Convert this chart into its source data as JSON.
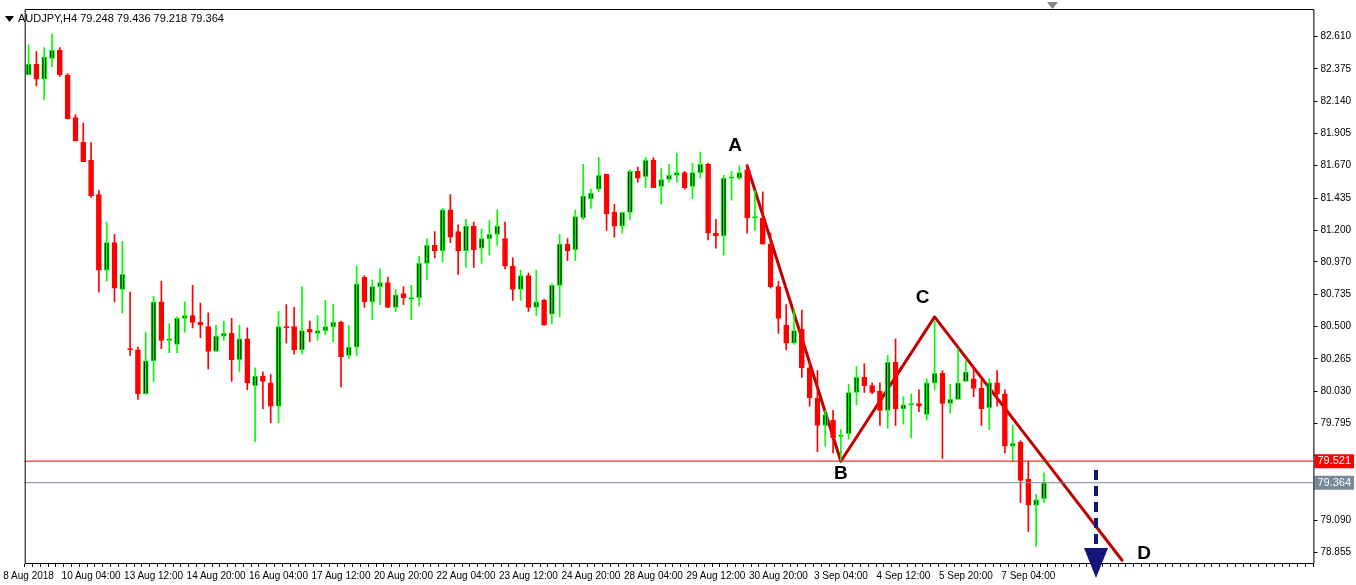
{
  "chart_data": {
    "type": "candlestick",
    "title": "AUDJPY,H4  79.248 79.436 79.218 79.364",
    "categories": [
      "8 Aug 2018",
      null,
      null,
      null,
      null,
      null,
      null,
      null,
      "10 Aug 04:00",
      null,
      null,
      null,
      null,
      null,
      null,
      null,
      "13 Aug 12:00",
      null,
      null,
      null,
      null,
      null,
      null,
      null,
      "14 Aug 20:00",
      null,
      null,
      null,
      null,
      null,
      null,
      null,
      "16 Aug 04:00",
      null,
      null,
      null,
      null,
      null,
      null,
      null,
      "17 Aug 12:00",
      null,
      null,
      null,
      null,
      null,
      null,
      null,
      "20 Aug 20:00",
      null,
      null,
      null,
      null,
      null,
      null,
      null,
      "22 Aug 04:00",
      null,
      null,
      null,
      null,
      null,
      null,
      null,
      "23 Aug 12:00",
      null,
      null,
      null,
      null,
      null,
      null,
      null,
      "24 Aug 20:00",
      null,
      null,
      null,
      null,
      null,
      null,
      null,
      "28 Aug 04:00",
      null,
      null,
      null,
      null,
      null,
      null,
      null,
      "29 Aug 12:00",
      null,
      null,
      null,
      null,
      null,
      null,
      null,
      "30 Aug 20:00",
      null,
      null,
      null,
      null,
      null,
      null,
      null,
      "3 Sep 04:00",
      null,
      null,
      null,
      null,
      null,
      null,
      null,
      "4 Sep 12:00",
      null,
      null,
      null,
      null,
      null,
      null,
      null,
      "5 Sep 20:00",
      null,
      null,
      null,
      null,
      null,
      null,
      null,
      "7 Sep 04:00",
      null,
      null,
      null,
      null,
      null,
      null,
      null,
      null,
      null,
      null,
      null,
      null,
      null,
      null,
      null,
      null,
      null,
      null,
      null,
      null,
      null,
      null,
      null,
      null,
      null,
      null,
      null,
      null,
      null,
      null,
      null,
      null,
      null,
      null,
      null,
      null
    ],
    "ohlc": [
      [
        82.33,
        82.55,
        82.33,
        82.41
      ],
      [
        82.41,
        82.5,
        82.25,
        82.3
      ],
      [
        82.3,
        82.53,
        82.15,
        82.46
      ],
      [
        82.45,
        82.63,
        82.39,
        82.51
      ],
      [
        82.51,
        82.53,
        82.32,
        82.33
      ],
      [
        82.33,
        82.34,
        82.01,
        82.01
      ],
      [
        82.02,
        82.04,
        81.85,
        81.85
      ],
      [
        81.84,
        81.98,
        81.7,
        81.7
      ],
      [
        81.71,
        81.84,
        81.44,
        81.45
      ],
      [
        81.46,
        81.49,
        80.75,
        80.91
      ],
      [
        80.91,
        81.26,
        80.83,
        81.11
      ],
      [
        81.11,
        81.17,
        80.68,
        80.78
      ],
      [
        80.77,
        81.12,
        80.6,
        80.88
      ],
      [
        80.34,
        80.75,
        80.29,
        80.33
      ],
      [
        80.33,
        80.35,
        79.97,
        80.01
      ],
      [
        80.01,
        80.46,
        80.01,
        80.25
      ],
      [
        80.25,
        80.72,
        80.1,
        80.68
      ],
      [
        80.68,
        80.83,
        80.34,
        80.4
      ],
      [
        80.4,
        80.52,
        80.31,
        80.41
      ],
      [
        80.37,
        80.57,
        80.31,
        80.56
      ],
      [
        80.56,
        80.68,
        80.46,
        80.58
      ],
      [
        80.58,
        80.8,
        80.49,
        80.53
      ],
      [
        80.53,
        80.67,
        80.42,
        80.51
      ],
      [
        80.5,
        80.6,
        80.19,
        80.32
      ],
      [
        80.32,
        80.51,
        80.32,
        80.43
      ],
      [
        80.43,
        80.54,
        80.4,
        80.45
      ],
      [
        80.45,
        80.56,
        80.1,
        80.26
      ],
      [
        80.26,
        80.51,
        80.17,
        80.41
      ],
      [
        80.41,
        80.49,
        80.04,
        80.09
      ],
      [
        80.07,
        80.2,
        79.66,
        80.14
      ],
      [
        80.14,
        80.17,
        79.9,
        80.1
      ],
      [
        80.09,
        80.15,
        79.8,
        79.92
      ],
      [
        79.92,
        80.61,
        79.8,
        80.5
      ],
      [
        80.5,
        80.66,
        80.38,
        80.49
      ],
      [
        80.5,
        80.64,
        80.3,
        80.33
      ],
      [
        80.33,
        80.79,
        80.3,
        80.47
      ],
      [
        80.48,
        80.54,
        80.39,
        80.46
      ],
      [
        80.45,
        80.58,
        80.4,
        80.47
      ],
      [
        80.47,
        80.69,
        80.44,
        80.5
      ],
      [
        80.5,
        80.66,
        80.39,
        80.53
      ],
      [
        80.53,
        80.54,
        80.06,
        80.28
      ],
      [
        80.29,
        80.51,
        80.27,
        80.35
      ],
      [
        80.35,
        80.94,
        80.29,
        80.81
      ],
      [
        80.86,
        80.87,
        80.64,
        80.68
      ],
      [
        80.68,
        80.84,
        80.55,
        80.79
      ],
      [
        80.79,
        80.92,
        80.66,
        80.82
      ],
      [
        80.82,
        80.86,
        80.64,
        80.64
      ],
      [
        80.64,
        80.77,
        80.61,
        80.73
      ],
      [
        80.74,
        80.79,
        80.66,
        80.71
      ],
      [
        80.7,
        80.8,
        80.55,
        80.71
      ],
      [
        80.71,
        81.01,
        80.65,
        80.96
      ],
      [
        80.96,
        81.14,
        80.84,
        81.09
      ],
      [
        81.09,
        81.19,
        81.0,
        81.05
      ],
      [
        81.05,
        81.36,
        80.97,
        81.35
      ],
      [
        81.35,
        81.46,
        81.11,
        81.15
      ],
      [
        81.19,
        81.24,
        80.88,
        81.05
      ],
      [
        81.05,
        81.28,
        80.93,
        81.23
      ],
      [
        81.23,
        81.26,
        80.93,
        81.06
      ],
      [
        81.07,
        81.21,
        80.96,
        81.14
      ],
      [
        81.14,
        81.27,
        81.02,
        81.17
      ],
      [
        81.17,
        81.35,
        81.09,
        81.23
      ],
      [
        81.14,
        81.26,
        80.92,
        80.94
      ],
      [
        80.94,
        81.0,
        80.69,
        80.77
      ],
      [
        80.77,
        80.91,
        80.69,
        80.87
      ],
      [
        80.87,
        80.89,
        80.61,
        80.64
      ],
      [
        80.64,
        80.91,
        80.58,
        80.68
      ],
      [
        80.69,
        80.7,
        80.51,
        80.51
      ],
      [
        80.59,
        80.81,
        80.52,
        80.8
      ],
      [
        80.8,
        81.17,
        80.57,
        81.1
      ],
      [
        81.1,
        81.14,
        80.98,
        81.05
      ],
      [
        81.06,
        81.35,
        80.98,
        81.3
      ],
      [
        81.29,
        81.68,
        81.28,
        81.45
      ],
      [
        81.43,
        81.5,
        81.36,
        81.47
      ],
      [
        81.5,
        81.73,
        81.48,
        81.6
      ],
      [
        81.61,
        81.61,
        81.2,
        81.32
      ],
      [
        81.33,
        81.39,
        81.15,
        81.23
      ],
      [
        81.23,
        81.33,
        81.18,
        81.33
      ],
      [
        81.33,
        81.64,
        81.28,
        81.63
      ],
      [
        81.63,
        81.66,
        81.55,
        81.58
      ],
      [
        81.59,
        81.73,
        81.51,
        81.71
      ],
      [
        81.71,
        81.73,
        81.51,
        81.51
      ],
      [
        81.52,
        81.65,
        81.39,
        81.57
      ],
      [
        81.57,
        81.68,
        81.55,
        81.6
      ],
      [
        81.6,
        81.76,
        81.55,
        81.62
      ],
      [
        81.62,
        81.63,
        81.5,
        81.51
      ],
      [
        81.52,
        81.69,
        81.43,
        81.62
      ],
      [
        81.62,
        81.77,
        81.58,
        81.68
      ],
      [
        81.68,
        81.69,
        81.13,
        81.18
      ],
      [
        81.18,
        81.28,
        81.07,
        81.16
      ],
      [
        81.16,
        81.6,
        81.02,
        81.58
      ],
      [
        81.58,
        81.63,
        81.42,
        81.59
      ],
      [
        81.58,
        81.67,
        81.57,
        81.62
      ],
      [
        81.64,
        81.67,
        81.18,
        81.29
      ],
      [
        81.29,
        81.49,
        81.2,
        81.3
      ],
      [
        81.29,
        81.48,
        81.1,
        81.1
      ],
      [
        81.1,
        81.18,
        80.78,
        80.79
      ],
      [
        80.79,
        80.83,
        80.45,
        80.56
      ],
      [
        80.51,
        80.66,
        80.33,
        80.38
      ],
      [
        80.38,
        80.63,
        80.37,
        80.47
      ],
      [
        80.48,
        80.62,
        80.13,
        80.2
      ],
      [
        80.2,
        80.24,
        79.92,
        79.98
      ],
      [
        79.98,
        80.18,
        79.59,
        79.78
      ],
      [
        79.78,
        79.89,
        79.63,
        79.86
      ],
      [
        79.82,
        79.89,
        79.58,
        79.69
      ],
      [
        79.7,
        79.75,
        79.52,
        79.71
      ],
      [
        79.72,
        80.08,
        79.68,
        80.02
      ],
      [
        80.02,
        80.21,
        79.93,
        80.13
      ],
      [
        80.13,
        80.23,
        80.02,
        80.07
      ],
      [
        80.07,
        80.09,
        80.01,
        80.02
      ],
      [
        80.03,
        80.09,
        79.78,
        79.89
      ],
      [
        79.89,
        80.29,
        79.76,
        80.24
      ],
      [
        80.24,
        80.41,
        79.78,
        79.9
      ],
      [
        79.9,
        79.99,
        79.79,
        79.93
      ],
      [
        79.93,
        80.01,
        79.69,
        79.94
      ],
      [
        79.94,
        80.04,
        79.88,
        79.92
      ],
      [
        79.86,
        80.12,
        79.82,
        80.09
      ],
      [
        80.09,
        80.54,
        80.04,
        80.16
      ],
      [
        80.16,
        80.18,
        79.54,
        79.94
      ],
      [
        79.94,
        80.08,
        79.87,
        79.97
      ],
      [
        79.97,
        80.34,
        79.97,
        80.09
      ],
      [
        80.1,
        80.25,
        80.1,
        80.17
      ],
      [
        80.12,
        80.21,
        79.99,
        80.05
      ],
      [
        80.05,
        80.11,
        79.78,
        79.9
      ],
      [
        79.91,
        80.12,
        79.75,
        80.09
      ],
      [
        80.09,
        80.18,
        79.92,
        80.01
      ],
      [
        80.01,
        80.04,
        79.58,
        79.63
      ],
      [
        79.63,
        79.78,
        79.52,
        79.65
      ],
      [
        79.66,
        79.67,
        79.22,
        79.38
      ],
      [
        79.39,
        79.52,
        79.01,
        79.2
      ],
      [
        79.2,
        79.28,
        78.9,
        79.24
      ],
      [
        79.248,
        79.436,
        79.218,
        79.364
      ],
      null,
      null,
      null,
      null,
      null,
      null,
      null,
      null,
      null,
      null,
      null,
      null,
      null,
      null,
      null,
      null,
      null,
      null,
      null,
      null,
      null,
      null,
      null,
      null,
      null,
      null,
      null,
      null,
      null,
      null,
      null,
      null,
      null,
      null
    ],
    "series": [
      {
        "type": "line",
        "color": "#c00000",
        "values": [
          null,
          null,
          null,
          null,
          null,
          null,
          null,
          null,
          null,
          null,
          null,
          null,
          null,
          null,
          null,
          null,
          null,
          null,
          null,
          null,
          null,
          null,
          null,
          null,
          null,
          null,
          null,
          null,
          null,
          null,
          null,
          null,
          null,
          null,
          null,
          null,
          null,
          null,
          null,
          null,
          null,
          null,
          null,
          null,
          null,
          null,
          null,
          null,
          null,
          null,
          null,
          null,
          null,
          null,
          null,
          null,
          null,
          null,
          null,
          null,
          null,
          null,
          null,
          null,
          null,
          null,
          null,
          null,
          null,
          null,
          null,
          null,
          null,
          null,
          null,
          null,
          null,
          null,
          null,
          null,
          null,
          null,
          null,
          null,
          null,
          null,
          null,
          null,
          null,
          null,
          null,
          null,
          81.67,
          null,
          null,
          null,
          null,
          null,
          null,
          null,
          null,
          null,
          null,
          null,
          79.52,
          null,
          null,
          null,
          null,
          null,
          null,
          null,
          null,
          null,
          null,
          null,
          80.57,
          null,
          null,
          null,
          null,
          null,
          null,
          null,
          null,
          null,
          null,
          null,
          null,
          null,
          null,
          null,
          null,
          null,
          null,
          null,
          null,
          null,
          null,
          null,
          78.8,
          null,
          null,
          null,
          null,
          null,
          null,
          null,
          null,
          null,
          null,
          null,
          null,
          null,
          null,
          null,
          null,
          null,
          null,
          null,
          null,
          null,
          null,
          null,
          null
        ]
      }
    ],
    "annotations": [
      "A",
      "B",
      "C",
      "D"
    ],
    "ylim": [
      78.78,
      82.81
    ],
    "yticks": [
      {
        "value": 82.61,
        "label": "82.610"
      },
      {
        "value": 82.375,
        "label": "82.375"
      },
      {
        "value": 82.14,
        "label": "82.140"
      },
      {
        "value": 81.905,
        "label": "81.905"
      },
      {
        "value": 81.67,
        "label": "81.670"
      },
      {
        "value": 81.435,
        "label": "81.435"
      },
      {
        "value": 81.2,
        "label": "81.200"
      },
      {
        "value": 80.97,
        "label": "80.970"
      },
      {
        "value": 80.735,
        "label": "80.735"
      },
      {
        "value": 80.5,
        "label": "80.500"
      },
      {
        "value": 80.265,
        "label": "80.265"
      },
      {
        "value": 80.03,
        "label": "80.030"
      },
      {
        "value": 79.795,
        "label": "79.795"
      },
      {
        "value": 79.56,
        "label": null
      },
      {
        "value": 79.325,
        "label": null
      },
      {
        "value": 79.09,
        "label": "79.090"
      },
      {
        "value": 78.855,
        "label": "78.855"
      }
    ],
    "ref_lines": [
      {
        "axis": "y",
        "value": 79.521,
        "label": "79.521",
        "color": "#ff0000"
      },
      {
        "axis": "y",
        "value": 79.364,
        "label": "79.364",
        "color": "#778899"
      }
    ]
  }
}
